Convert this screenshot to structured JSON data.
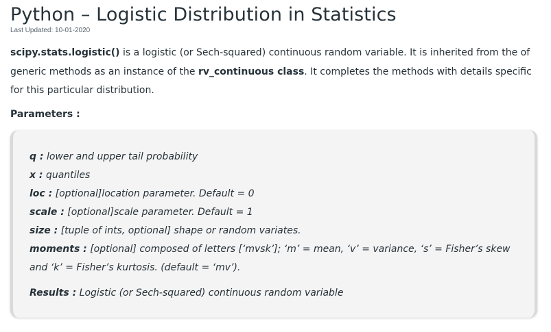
{
  "article": {
    "title": "Python – Logistic Distribution in Statistics",
    "last_updated": "Last Updated: 10-01-2020",
    "intro": {
      "code_name": "scipy.stats.logistic()",
      "text_1": " is a logistic (or Sech-squared) continuous random variable. It is inherited from the of generic methods as an instance of the ",
      "class_name": "rv_continuous class",
      "text_2": ". It completes the methods with details specific for this particular distribution."
    },
    "parameters_heading": "Parameters :",
    "parameters": [
      {
        "name": "q :",
        "desc": " lower and upper tail probability"
      },
      {
        "name": "x :",
        "desc": " quantiles"
      },
      {
        "name": "loc :",
        "desc": " [optional]location parameter. Default = 0"
      },
      {
        "name": "scale :",
        "desc": " [optional]scale parameter. Default = 1"
      },
      {
        "name": "size :",
        "desc": " [tuple of ints, optional] shape or random variates."
      },
      {
        "name": "moments :",
        "desc": " [optional] composed of letters [‘mvsk’]; ‘m’ = mean, ‘v’ = variance, ‘s’ = Fisher’s skew and ‘k’ = Fisher’s kurtosis. (default = ‘mv’)."
      }
    ],
    "results": {
      "name": "Results :",
      "desc": " Logistic (or Sech-squared) continuous random variable"
    }
  },
  "colors": {
    "text": "#273239",
    "box_background": "#f4f4f4",
    "box_border": "#d9d9d9",
    "muted": "#5b6770"
  }
}
